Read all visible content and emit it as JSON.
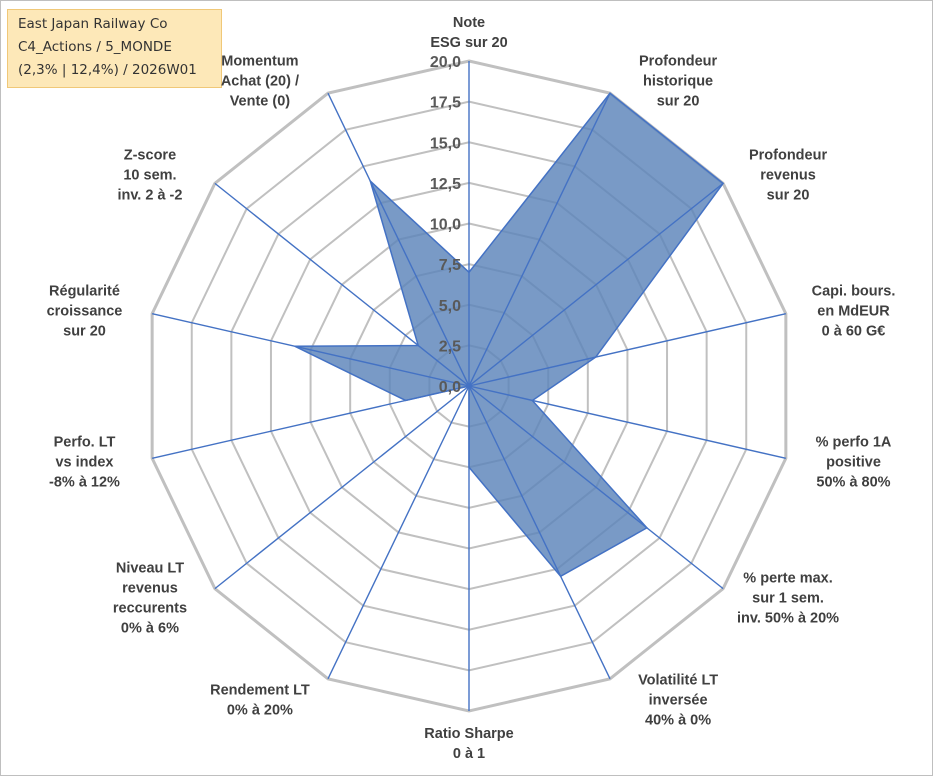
{
  "header": {
    "lines": [
      "East Japan Railway Co",
      "C4_Actions / 5_MONDE",
      "(2,3% | 12,4%) / 2026W01"
    ]
  },
  "chart_data": {
    "type": "radar",
    "title": "",
    "range": [
      0,
      20
    ],
    "tick_step": 2.5,
    "tick_labels": [
      "0,0",
      "2,5",
      "5,0",
      "7,5",
      "10,0",
      "12,5",
      "15,0",
      "17,5",
      "20,0"
    ],
    "grid": true,
    "axes": [
      {
        "label": [
          "Note",
          "ESG sur 20"
        ]
      },
      {
        "label": [
          "Profondeur",
          "historique",
          "sur 20"
        ]
      },
      {
        "label": [
          "Profondeur",
          "revenus",
          "sur 20"
        ]
      },
      {
        "label": [
          "Capi. bours.",
          "en MdEUR",
          "0 à 60 G€"
        ]
      },
      {
        "label": [
          "% perfo 1A",
          "positive",
          "50% à 80%"
        ]
      },
      {
        "label": [
          "% perte max.",
          "sur 1 sem.",
          "inv. 50% à 20%"
        ]
      },
      {
        "label": [
          "Volatilité LT",
          "inversée",
          "40% à 0%"
        ]
      },
      {
        "label": [
          "Ratio Sharpe",
          "0 à 1"
        ]
      },
      {
        "label": [
          "Rendement LT",
          "0% à 20%"
        ]
      },
      {
        "label": [
          "Niveau LT",
          "revenus",
          "reccurents",
          "0% à 6%"
        ]
      },
      {
        "label": [
          "Perfo. LT",
          "vs index",
          "-8% à 12%"
        ]
      },
      {
        "label": [
          "Régularité",
          "croissance",
          "sur 20"
        ]
      },
      {
        "label": [
          "Z-score",
          "10 sem.",
          "inv. 2 à -2"
        ]
      },
      {
        "label": [
          "Momentum",
          "Achat (20) /",
          "Vente (0)"
        ]
      }
    ],
    "series": [
      {
        "values": [
          7,
          20,
          20,
          8,
          4,
          14,
          13,
          5,
          0,
          0,
          4,
          11,
          4,
          14
        ]
      }
    ],
    "colors": {
      "fill": "#5b84b9",
      "outline": "#4472c4",
      "spokes": "#4472c4",
      "grid": "#c0c0c0"
    }
  }
}
